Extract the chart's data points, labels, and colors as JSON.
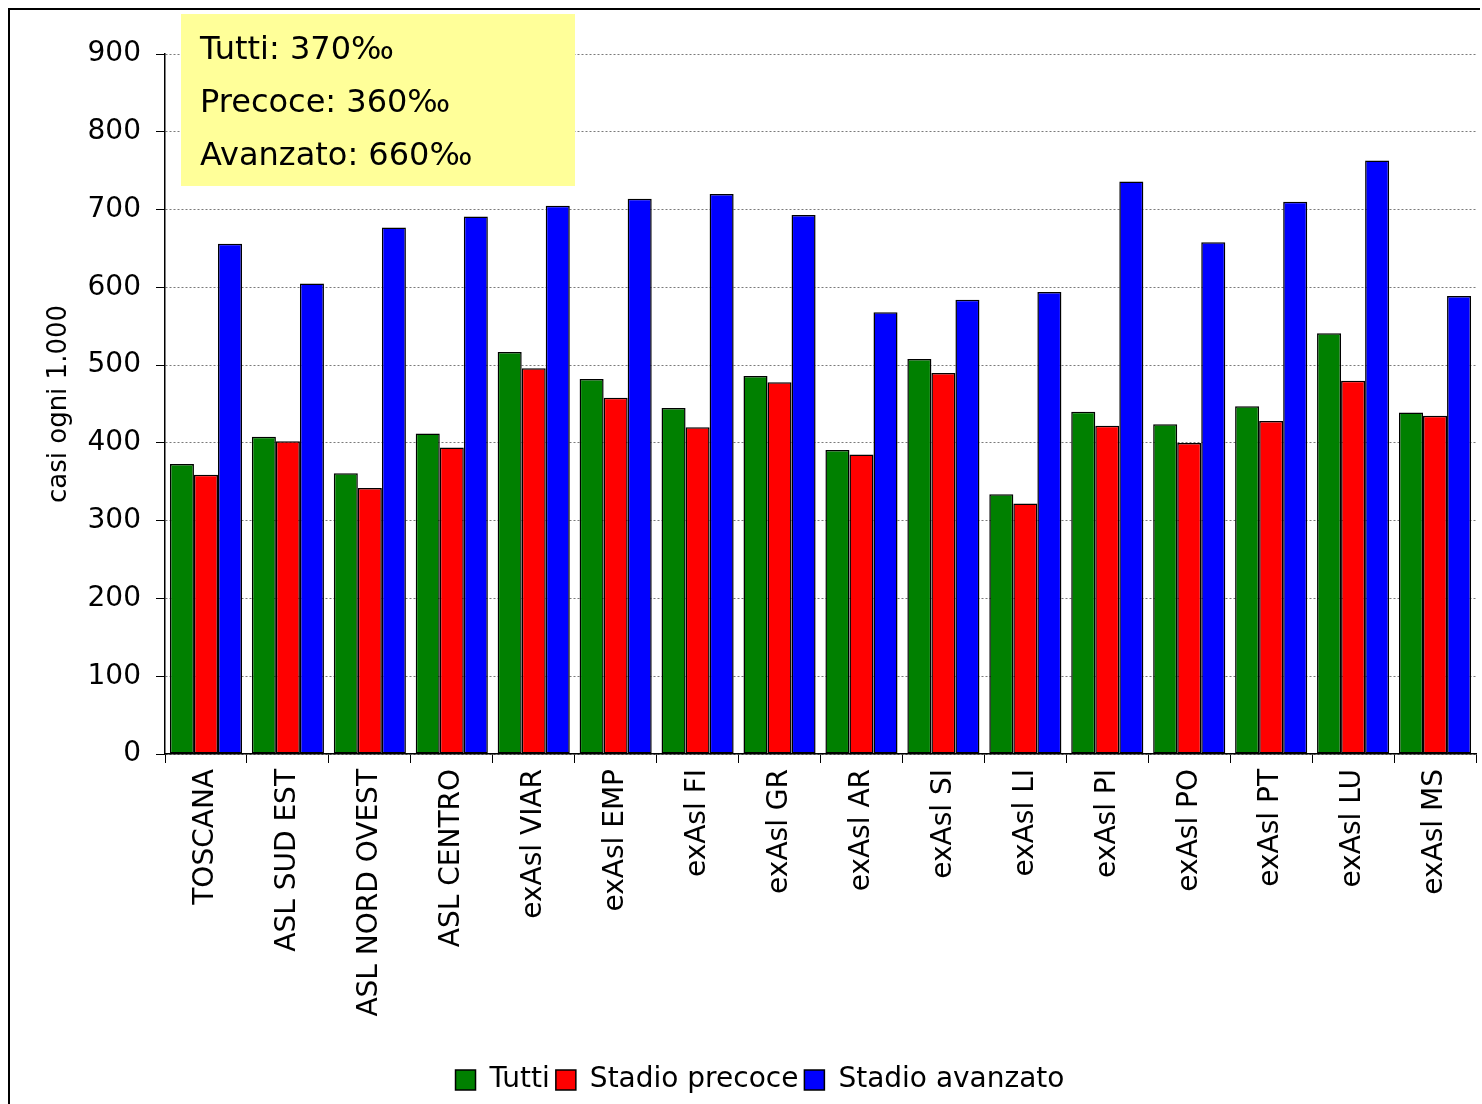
{
  "chart_data": {
    "type": "bar",
    "ylabel": "casi ogni 1.000",
    "categories": [
      "TOSCANA",
      "ASL SUD EST",
      "ASL NORD OVEST",
      "ASL CENTRO",
      "exAsl VIAR",
      "exAsl EMP",
      "exAsl FI",
      "exAsl GR",
      "exAsl AR",
      "exAsl SI",
      "exAsl LI",
      "exAsl PI",
      "exAsl PO",
      "exAsl PT",
      "exAsl LU",
      "exAsl MS"
    ],
    "series": [
      {
        "name": "Tutti",
        "color": "#008000",
        "values": [
          373,
          408,
          361,
          412,
          517,
          482,
          445,
          486,
          391,
          508,
          334,
          440,
          424,
          447,
          541,
          439
        ]
      },
      {
        "name": "Stadio precoce",
        "color": "#ff0000",
        "values": [
          359,
          402,
          342,
          394,
          496,
          458,
          420,
          478,
          385,
          490,
          322,
          422,
          400,
          428,
          480,
          435
        ]
      },
      {
        "name": "Stadio avanzato",
        "color": "#0000ff",
        "values": [
          656,
          605,
          677,
          691,
          705,
          714,
          720,
          693,
          568,
          584,
          594,
          736,
          658,
          710,
          763,
          589
        ]
      }
    ],
    "ylim": [
      0,
      900
    ],
    "yticks": [
      0,
      100,
      200,
      300,
      400,
      500,
      600,
      700,
      800,
      900
    ],
    "grid": "y",
    "legend": "bottom",
    "annotations": [
      "Tutti: 370‰",
      "Precoce: 360‰",
      "Avanzato: 660‰"
    ]
  }
}
